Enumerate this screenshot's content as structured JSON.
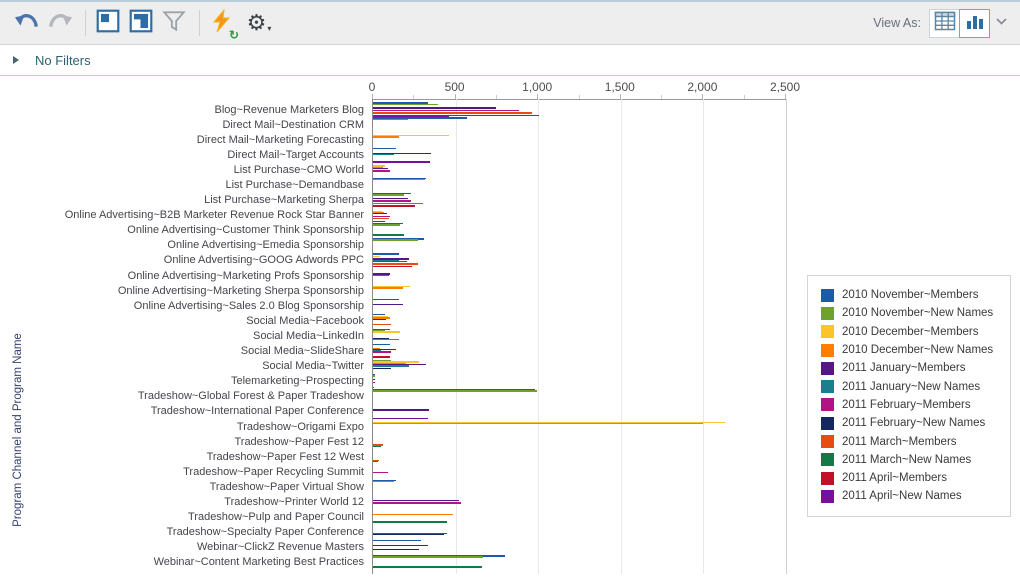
{
  "toolbar": {
    "view_as_label": "View As:",
    "selected_view": "chart"
  },
  "filters_bar": {
    "label": "No Filters"
  },
  "chart_data": {
    "type": "bar",
    "orientation": "horizontal",
    "title": "",
    "xlabel": "",
    "ylabel": "Program Channel and Program Name",
    "xlim": [
      0,
      2500
    ],
    "x_tick_values": [
      0,
      500,
      1000,
      1500,
      2000,
      2500
    ],
    "x_tick_labels": [
      "0",
      "500",
      "1,000",
      "1,500",
      "2,000",
      "2,500"
    ],
    "grid": true,
    "legend_position": "right",
    "series": [
      {
        "name": "2010 November~Members",
        "color": "#1d5ba8"
      },
      {
        "name": "2010 November~New Names",
        "color": "#6fa22b"
      },
      {
        "name": "2010 December~Members",
        "color": "#fdc32a"
      },
      {
        "name": "2010 December~New Names",
        "color": "#ff7e00"
      },
      {
        "name": "2011 January~Members",
        "color": "#551687"
      },
      {
        "name": "2011 January~New Names",
        "color": "#1a7e8f"
      },
      {
        "name": "2011 February~Members",
        "color": "#b01485"
      },
      {
        "name": "2011 February~New Names",
        "color": "#15285d"
      },
      {
        "name": "2011 March~Members",
        "color": "#e54d10"
      },
      {
        "name": "2011 March~New Names",
        "color": "#117a49"
      },
      {
        "name": "2011 April~Members",
        "color": "#c11027"
      },
      {
        "name": "2011 April~New Names",
        "color": "#770f9e"
      }
    ],
    "categories": [
      "Blog~Revenue Marketers Blog",
      "Direct Mail~Destination CRM",
      "Direct Mail~Marketing Forecasting",
      "Direct Mail~Target Accounts",
      "List Purchase~CMO World",
      "List Purchase~Demandbase",
      "List Purchase~Marketing Sherpa",
      "Online Advertising~B2B Marketer Revenue Rock Star Banner",
      "Online Advertising~Customer Think Sponsorship",
      "Online Advertising~Emedia Sponsorship",
      "Online Advertising~GOOG Adwords PPC",
      "Online Advertising~Marketing Profs Sponsorship",
      "Online Advertising~Marketing Sherpa Sponsorship",
      "Online Advertising~Sales 2.0 Blog Sponsorship",
      "Social Media~Facebook",
      "Social Media~LinkedIn",
      "Social Media~SlideShare",
      "Social Media~Twitter",
      "Telemarketing~Prospecting",
      "Tradeshow~Global Forest & Paper Tradeshow",
      "Tradeshow~International Paper Conference",
      "Tradeshow~Origami Expo",
      "Tradeshow~Paper Fest 12",
      "Tradeshow~Paper Fest 12 West",
      "Tradeshow~Paper Recycling Summit",
      "Tradeshow~Paper Virtual Show",
      "Tradeshow~Printer World 12",
      "Tradeshow~Pulp and Paper Council",
      "Tradeshow~Specialty Paper Conference",
      "Webinar~ClickZ Revenue Masters",
      "Webinar~Content Marketing Best Practices"
    ],
    "values": [
      [
        330,
        395,
        0,
        0,
        745,
        0,
        885,
        0,
        965,
        0,
        1005,
        460
      ],
      [
        570,
        210,
        0,
        0,
        0,
        0,
        0,
        0,
        0,
        0,
        0,
        0
      ],
      [
        0,
        0,
        460,
        160,
        0,
        0,
        0,
        0,
        0,
        0,
        0,
        0
      ],
      [
        140,
        0,
        0,
        0,
        350,
        130,
        0,
        0,
        0,
        0,
        0,
        345
      ],
      [
        0,
        0,
        70,
        60,
        90,
        0,
        100,
        0,
        0,
        0,
        0,
        0
      ],
      [
        320,
        315,
        0,
        0,
        0,
        0,
        0,
        0,
        0,
        0,
        0,
        0
      ],
      [
        230,
        190,
        0,
        0,
        210,
        0,
        230,
        0,
        300,
        0,
        255,
        0
      ],
      [
        0,
        0,
        55,
        65,
        85,
        0,
        100,
        0,
        95,
        0,
        75,
        0
      ],
      [
        180,
        165,
        0,
        0,
        0,
        0,
        0,
        0,
        0,
        185,
        0,
        0
      ],
      [
        310,
        270,
        0,
        0,
        0,
        0,
        0,
        0,
        0,
        0,
        0,
        0
      ],
      [
        160,
        0,
        45,
        0,
        215,
        155,
        205,
        0,
        275,
        0,
        235,
        0
      ],
      [
        0,
        0,
        0,
        0,
        100,
        95,
        0,
        0,
        0,
        0,
        0,
        0
      ],
      [
        0,
        0,
        225,
        180,
        0,
        0,
        0,
        0,
        0,
        0,
        0,
        0
      ],
      [
        160,
        0,
        0,
        0,
        180,
        0,
        0,
        0,
        0,
        0,
        0,
        0
      ],
      [
        70,
        0,
        90,
        100,
        80,
        0,
        0,
        0,
        110,
        0,
        0,
        0
      ],
      [
        100,
        75,
        165,
        0,
        0,
        0,
        0,
        95,
        160,
        0,
        0,
        0
      ],
      [
        105,
        0,
        0,
        40,
        140,
        50,
        110,
        0,
        0,
        0,
        100,
        0
      ],
      [
        0,
        110,
        280,
        200,
        320,
        220,
        0,
        110,
        0,
        0,
        0,
        0
      ],
      [
        15,
        10,
        0,
        0,
        12,
        0,
        10,
        0,
        0,
        0,
        8,
        0
      ],
      [
        980,
        995,
        0,
        0,
        0,
        0,
        0,
        0,
        0,
        0,
        0,
        0
      ],
      [
        0,
        0,
        0,
        0,
        340,
        0,
        0,
        0,
        0,
        0,
        0,
        330
      ],
      [
        0,
        0,
        2130,
        2000,
        0,
        0,
        0,
        0,
        0,
        0,
        0,
        0
      ],
      [
        0,
        0,
        0,
        0,
        0,
        0,
        0,
        0,
        60,
        50,
        0,
        0
      ],
      [
        0,
        0,
        0,
        0,
        0,
        0,
        0,
        0,
        35,
        30,
        0,
        0
      ],
      [
        0,
        0,
        0,
        0,
        0,
        0,
        90,
        0,
        0,
        0,
        0,
        0
      ],
      [
        140,
        130,
        0,
        0,
        0,
        0,
        0,
        0,
        0,
        0,
        0,
        0
      ],
      [
        0,
        0,
        0,
        0,
        520,
        0,
        530,
        0,
        0,
        0,
        0,
        0
      ],
      [
        0,
        0,
        0,
        485,
        0,
        0,
        0,
        0,
        0,
        445,
        0,
        0
      ],
      [
        0,
        0,
        0,
        0,
        0,
        0,
        445,
        430,
        0,
        0,
        0,
        0
      ],
      [
        290,
        0,
        0,
        0,
        330,
        0,
        0,
        280,
        0,
        0,
        0,
        0
      ],
      [
        800,
        665,
        0,
        0,
        0,
        0,
        0,
        0,
        0,
        660,
        0,
        0
      ]
    ]
  }
}
